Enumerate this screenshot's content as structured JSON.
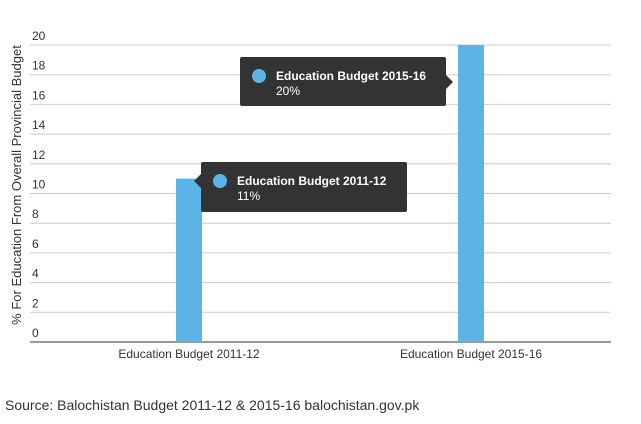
{
  "chart_data": {
    "type": "bar",
    "categories": [
      "Education Budget 2011-12",
      "Education Budget 2015-16"
    ],
    "values": [
      11,
      20
    ],
    "value_suffix": "%",
    "ylabel": "% For Education From Overall Provincial Budget",
    "ylim": [
      0,
      20
    ],
    "yticks": [
      0,
      2,
      4,
      6,
      8,
      10,
      12,
      14,
      16,
      18,
      20
    ],
    "grid": true,
    "bar_color": "#5bb4e5",
    "tooltips": [
      {
        "title": "Education Budget 2011-12",
        "value": "11%"
      },
      {
        "title": "Education Budget 2015-16",
        "value": "20%"
      }
    ],
    "tooltip_bg": "#333333"
  },
  "source": "Source: Balochistan Budget 2011-12 & 2015-16 balochistan.gov.pk"
}
